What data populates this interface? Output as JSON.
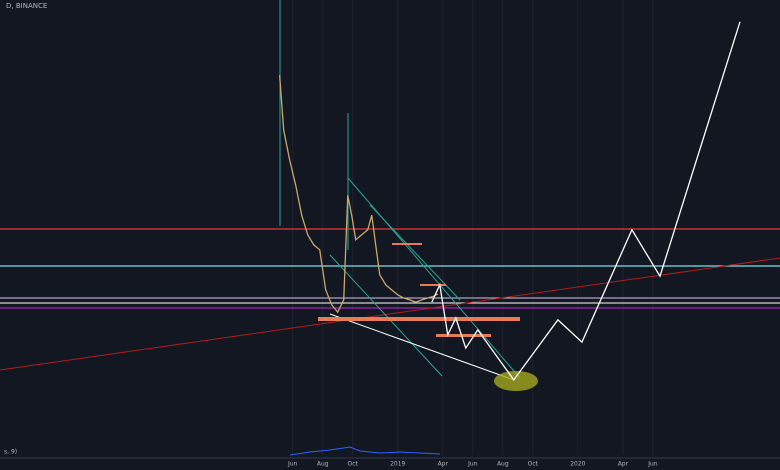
{
  "chart_data": {
    "type": "line",
    "title": "D, BINANCE",
    "indicator_label": "s, 9)",
    "xlim": [
      -14.5,
      36.8
    ],
    "ylim": [
      0,
      100
    ],
    "grid": true,
    "xticks": [
      {
        "value": 5,
        "label": "Jun"
      },
      {
        "value": 7,
        "label": "Aug"
      },
      {
        "value": 9,
        "label": "Oct"
      },
      {
        "value": 12,
        "label": "2019"
      },
      {
        "value": 15,
        "label": "Apr"
      },
      {
        "value": 17,
        "label": "Jun"
      },
      {
        "value": 19,
        "label": "Aug"
      },
      {
        "value": 21,
        "label": "Oct"
      },
      {
        "value": 24,
        "label": "2020"
      },
      {
        "value": 27,
        "label": "Apr"
      },
      {
        "value": 29,
        "label": "Jun"
      }
    ],
    "series": [
      {
        "color": "#c9a86a",
        "x": [
          4.13,
          4.4,
          4.8,
          5.2,
          5.6,
          6.0,
          6.4,
          6.8,
          7.2,
          7.6,
          8.0,
          8.4,
          8.67,
          8.93,
          9.2,
          9.6,
          10.0,
          10.27,
          10.53,
          10.8,
          11.2,
          11.6,
          12.0,
          12.4,
          12.8,
          13.2,
          13.6,
          14.0,
          14.4,
          14.67
        ],
        "values": [
          83.5,
          71.4,
          64.8,
          59.3,
          52.7,
          48.4,
          46.2,
          45.1,
          36.3,
          33.0,
          31.4,
          34.1,
          57.1,
          52.7,
          47.3,
          48.4,
          49.5,
          52.7,
          46.2,
          39.6,
          37.4,
          36.3,
          35.2,
          34.5,
          34.1,
          33.6,
          34.1,
          34.5,
          34.9,
          35.4
        ]
      },
      {
        "color": "#ffffff",
        "x": [
          14.27,
          14.8,
          15.33,
          15.87,
          16.53,
          17.33,
          19.73,
          22.67,
          24.27,
          27.6,
          29.47,
          34.8
        ],
        "values": [
          33.6,
          37.4,
          26.4,
          30.1,
          23.5,
          27.5,
          16.5,
          29.7,
          24.8,
          49.5,
          39.3,
          95.2
        ]
      }
    ]
  }
}
